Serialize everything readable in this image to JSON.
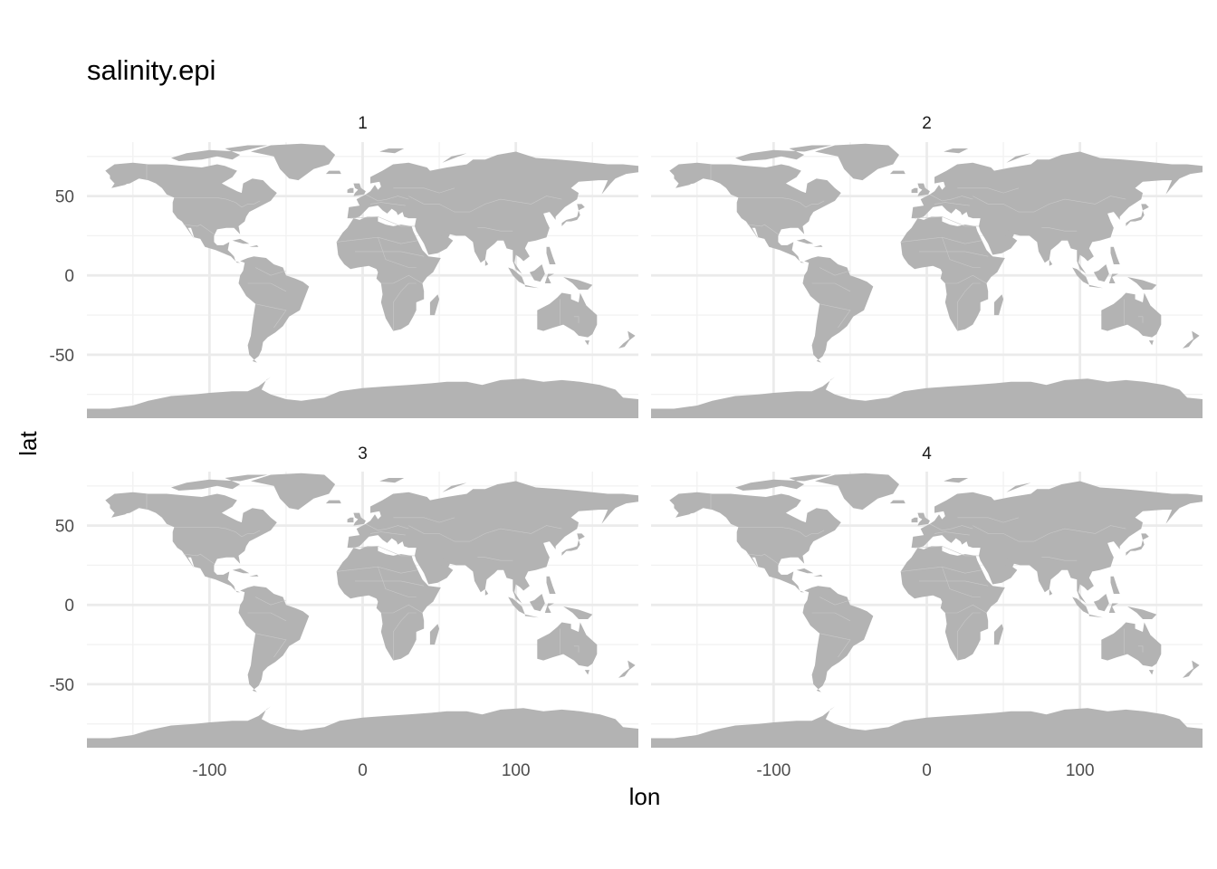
{
  "map": {
    "title": "salinity.epi",
    "xlabel": "lon",
    "ylabel": "lat",
    "x_ticks": [
      -100,
      0,
      100
    ],
    "y_ticks": [
      50,
      0,
      -50
    ],
    "x_tick_labels": [
      "-100",
      "0",
      "100"
    ],
    "y_tick_labels": [
      "50",
      "0",
      "-50"
    ],
    "xlim": [
      -180,
      180
    ],
    "ylim": [
      -90,
      84
    ],
    "panels": [
      {
        "label": "1"
      },
      {
        "label": "2"
      },
      {
        "label": "3"
      },
      {
        "label": "4"
      }
    ],
    "land_color": "#b3b3b3",
    "grid_major_color": "#ebebeb",
    "grid_minor_color": "#f2f2f2",
    "theme": "minimal",
    "facet_layout": "2x2"
  }
}
